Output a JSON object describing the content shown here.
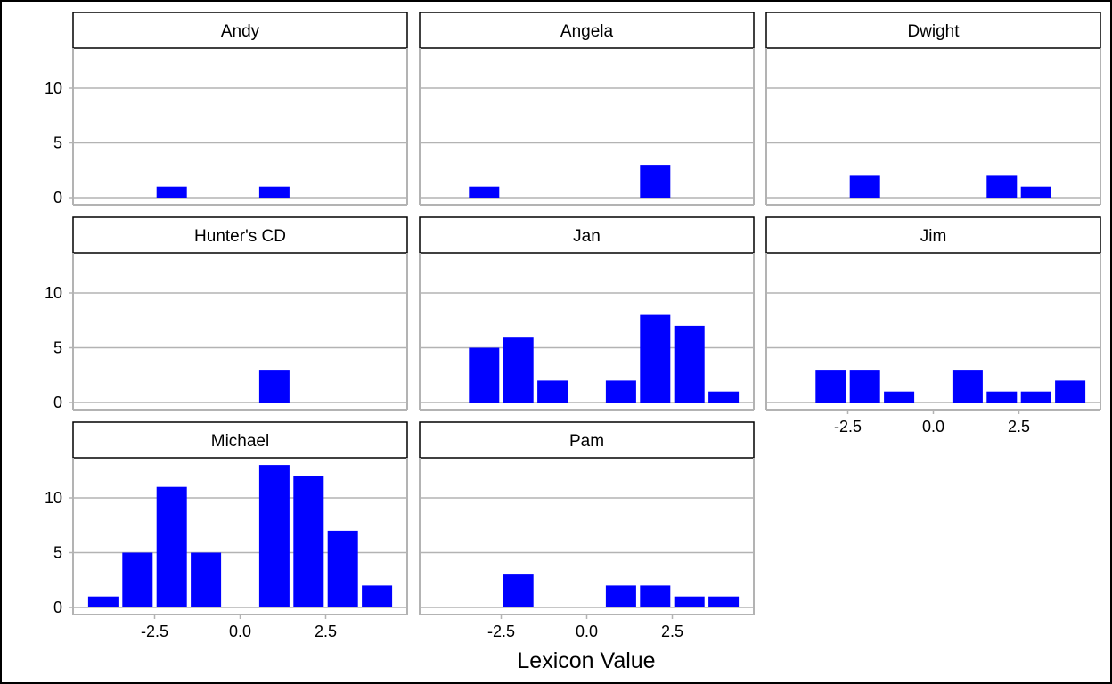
{
  "chart_data": {
    "type": "bar",
    "xlabel": "Lexicon Value",
    "ylabel": "",
    "x": [
      -4,
      -3,
      -2,
      -1,
      1,
      2,
      3,
      4
    ],
    "ylim": [
      0,
      13
    ],
    "y_ticks": [
      0,
      5,
      10
    ],
    "y_tick_labels": [
      "0",
      "5",
      "10"
    ],
    "x_ticks": [
      -2.5,
      0.0,
      2.5
    ],
    "x_tick_labels": [
      "-2.5",
      "0.0",
      "2.5"
    ],
    "grid": true,
    "bar_color": "#0000FF",
    "panels": [
      {
        "name": "Andy",
        "values": [
          0,
          0,
          1,
          0,
          1,
          0,
          0,
          0
        ]
      },
      {
        "name": "Angela",
        "values": [
          0,
          1,
          0,
          0,
          0,
          3,
          0,
          0
        ]
      },
      {
        "name": "Dwight",
        "values": [
          0,
          0,
          2,
          0,
          0,
          2,
          1,
          0
        ]
      },
      {
        "name": "Hunter's CD",
        "values": [
          0,
          0,
          0,
          0,
          3,
          0,
          0,
          0
        ]
      },
      {
        "name": "Jan",
        "values": [
          0,
          5,
          6,
          2,
          2,
          8,
          7,
          1
        ]
      },
      {
        "name": "Jim",
        "values": [
          0,
          3,
          3,
          1,
          3,
          1,
          1,
          2
        ]
      },
      {
        "name": "Michael",
        "values": [
          1,
          5,
          11,
          5,
          13,
          12,
          7,
          2
        ]
      },
      {
        "name": "Pam",
        "values": [
          0,
          0,
          3,
          0,
          2,
          2,
          1,
          1
        ]
      }
    ]
  }
}
